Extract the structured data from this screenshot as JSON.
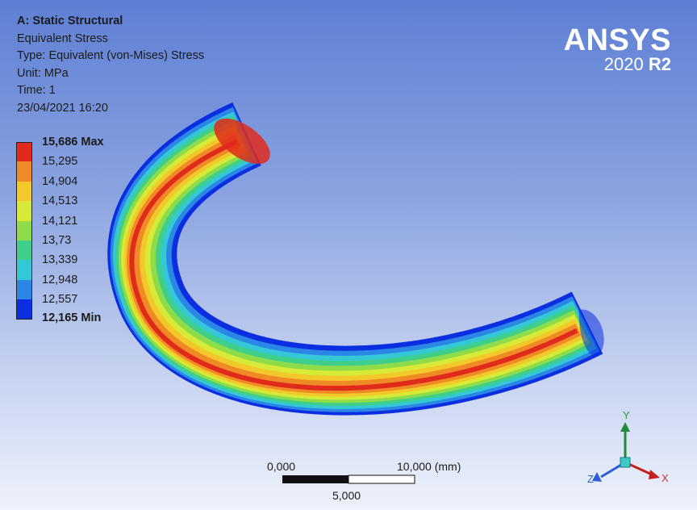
{
  "info": {
    "title": "A: Static Structural",
    "result": "Equivalent Stress",
    "type": "Type: Equivalent (von-Mises) Stress",
    "unit": "Unit: MPa",
    "time": "Time: 1",
    "date": "23/04/2021 16:20"
  },
  "brand": {
    "logo": "ANSYS",
    "version": "2020",
    "release": "R2"
  },
  "legend": {
    "max_label": "15,686 Max",
    "min_label": "12,165 Min",
    "levels": [
      "15,295",
      "14,904",
      "14,513",
      "14,121",
      "13,73",
      "13,339",
      "12,948",
      "12,557"
    ],
    "colors": [
      "#e02a1c",
      "#f08a26",
      "#f2c82a",
      "#d8ea38",
      "#8fdc4a",
      "#3fcf8a",
      "#34c7d6",
      "#2b86e6",
      "#0b2fe0"
    ]
  },
  "scale": {
    "left": "0,000",
    "right": "10,000 (mm)",
    "mid": "5,000"
  },
  "triad": {
    "x": "X",
    "y": "Y",
    "z": "Z"
  }
}
